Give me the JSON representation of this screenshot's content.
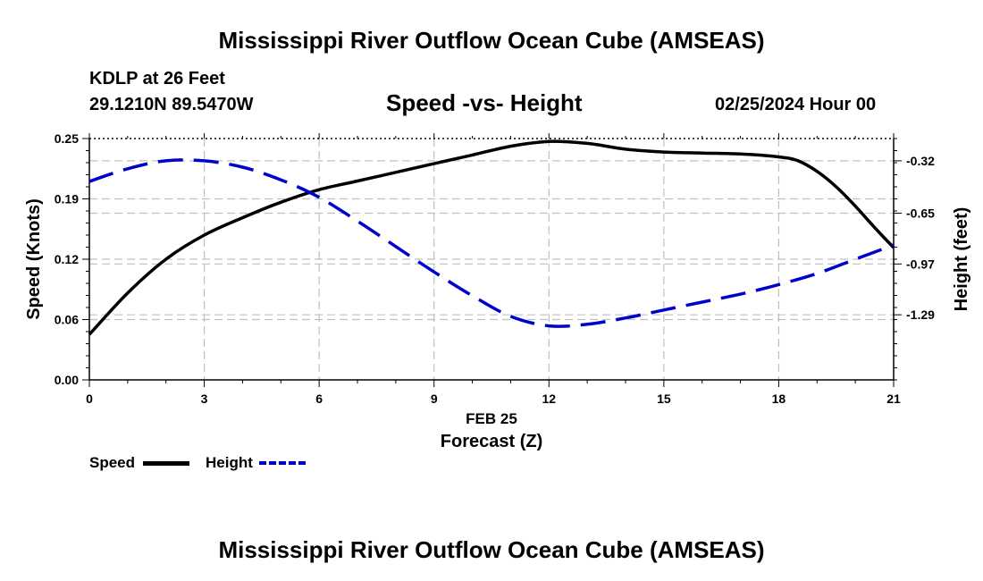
{
  "header": {
    "title": "Mississippi River Outflow Ocean Cube (AMSEAS)",
    "station": "KDLP at 26 Feet",
    "coordinates": "29.1210N  89.5470W",
    "subtitle": "Speed -vs- Height",
    "datetime": "02/25/2024 Hour 00"
  },
  "footer": {
    "title": "Mississippi River Outflow Ocean Cube (AMSEAS)"
  },
  "legend": {
    "speed_label": "Speed",
    "height_label": "Height"
  },
  "chart_data": {
    "type": "line",
    "title": "Speed -vs- Height",
    "xlabel": "Forecast (Z)",
    "xlabel_date": "FEB 25",
    "ylabel_left": "Speed (Knots)",
    "ylabel_right": "Height (feet)",
    "xlim": [
      0,
      21
    ],
    "x_ticks": [
      0,
      3,
      6,
      9,
      12,
      15,
      18,
      21
    ],
    "ylim_left": [
      0,
      0.25
    ],
    "y_ticks_left": [
      {
        "value": 0.0,
        "label": "0.00"
      },
      {
        "value": 0.0625,
        "label": "0.06"
      },
      {
        "value": 0.125,
        "label": "0.12"
      },
      {
        "value": 0.1875,
        "label": "0.19"
      },
      {
        "value": 0.25,
        "label": "0.25"
      }
    ],
    "ylim_right": [
      -1.7,
      -0.18
    ],
    "y_ticks_right": [
      {
        "value": -0.32,
        "label": "-0.32"
      },
      {
        "value": -0.65,
        "label": "-0.65"
      },
      {
        "value": -0.97,
        "label": "-0.97"
      },
      {
        "value": -1.29,
        "label": "-1.29"
      }
    ],
    "grid": true,
    "legend_position": "bottom-left",
    "series": [
      {
        "name": "Speed",
        "axis": "left",
        "color": "#000000",
        "dash": "solid",
        "x": [
          0,
          1,
          2,
          3,
          4,
          5,
          6,
          7,
          8,
          9,
          10,
          11,
          12,
          13,
          14,
          15,
          16,
          17,
          18,
          18.5,
          19,
          19.5,
          20,
          20.5,
          21
        ],
        "values": [
          0.047,
          0.09,
          0.125,
          0.15,
          0.168,
          0.184,
          0.197,
          0.206,
          0.215,
          0.224,
          0.233,
          0.242,
          0.247,
          0.245,
          0.239,
          0.236,
          0.235,
          0.234,
          0.231,
          0.227,
          0.216,
          0.2,
          0.18,
          0.158,
          0.137
        ]
      },
      {
        "name": "Height",
        "axis": "right",
        "color": "#0000cc",
        "dash": "dashed",
        "x": [
          0,
          1,
          2,
          3,
          4,
          5,
          6,
          7,
          8,
          9,
          10,
          11,
          12,
          13,
          14,
          15,
          16,
          17,
          18,
          19,
          20,
          21
        ],
        "values": [
          -0.45,
          -0.37,
          -0.32,
          -0.32,
          -0.36,
          -0.44,
          -0.55,
          -0.7,
          -0.86,
          -1.02,
          -1.17,
          -1.3,
          -1.36,
          -1.35,
          -1.31,
          -1.26,
          -1.21,
          -1.16,
          -1.1,
          -1.03,
          -0.94,
          -0.85
        ]
      }
    ]
  }
}
